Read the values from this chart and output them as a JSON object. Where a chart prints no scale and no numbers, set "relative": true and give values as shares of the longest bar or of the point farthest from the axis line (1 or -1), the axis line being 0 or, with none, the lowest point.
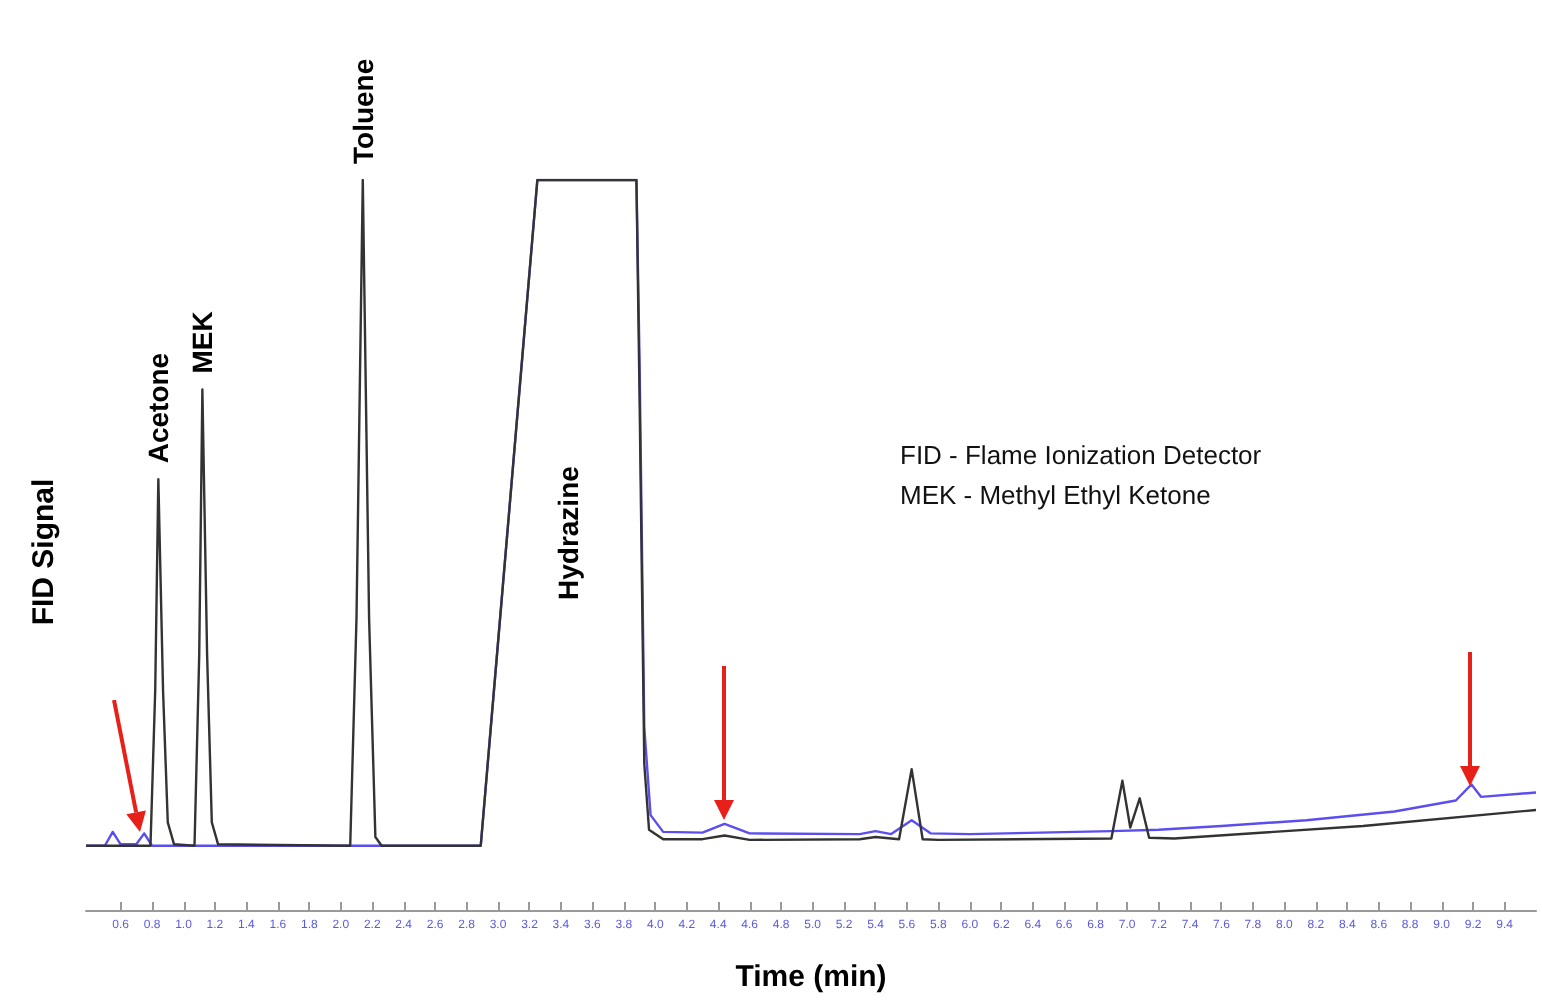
{
  "chart_data": {
    "type": "line",
    "relative": true,
    "xlabel": "Time (min)",
    "ylabel": "FID Signal",
    "xlim": [
      0.38,
      9.6
    ],
    "xticks": [
      {
        "value": 0.6,
        "label": "0.6"
      },
      {
        "value": 0.8,
        "label": "0.8"
      },
      {
        "value": 1.0,
        "label": "1.0"
      },
      {
        "value": 1.2,
        "label": "1.2"
      },
      {
        "value": 1.4,
        "label": "1.4"
      },
      {
        "value": 1.6,
        "label": "1.6"
      },
      {
        "value": 1.8,
        "label": "1.8"
      },
      {
        "value": 2.0,
        "label": "2.0"
      },
      {
        "value": 2.2,
        "label": "2.2"
      },
      {
        "value": 2.4,
        "label": "2.4"
      },
      {
        "value": 2.6,
        "label": "2.6"
      },
      {
        "value": 2.8,
        "label": "2.8"
      },
      {
        "value": 3.0,
        "label": "3.0"
      },
      {
        "value": 3.2,
        "label": "3.2"
      },
      {
        "value": 3.4,
        "label": "3.4"
      },
      {
        "value": 3.6,
        "label": "3.6"
      },
      {
        "value": 3.8,
        "label": "3.8"
      },
      {
        "value": 4.0,
        "label": "4.0"
      },
      {
        "value": 4.2,
        "label": "4.2"
      },
      {
        "value": 4.4,
        "label": "4.4"
      },
      {
        "value": 4.6,
        "label": "4.6"
      },
      {
        "value": 4.8,
        "label": "4.8"
      },
      {
        "value": 5.0,
        "label": "5.0"
      },
      {
        "value": 5.2,
        "label": "5.2"
      },
      {
        "value": 5.4,
        "label": "5.4"
      },
      {
        "value": 5.6,
        "label": "5.6"
      },
      {
        "value": 5.8,
        "label": "5.8"
      },
      {
        "value": 6.0,
        "label": "6.0"
      },
      {
        "value": 6.2,
        "label": "6.2"
      },
      {
        "value": 6.4,
        "label": "6.4"
      },
      {
        "value": 6.6,
        "label": "6.6"
      },
      {
        "value": 6.8,
        "label": "6.8"
      },
      {
        "value": 7.0,
        "label": "7.0"
      },
      {
        "value": 7.2,
        "label": "7.2"
      },
      {
        "value": 7.4,
        "label": "7.4"
      },
      {
        "value": 7.6,
        "label": "7.6"
      },
      {
        "value": 7.8,
        "label": "7.8"
      },
      {
        "value": 8.0,
        "label": "8.0"
      },
      {
        "value": 8.2,
        "label": "8.2"
      },
      {
        "value": 8.4,
        "label": "8.4"
      },
      {
        "value": 8.6,
        "label": "8.6"
      },
      {
        "value": 8.8,
        "label": "8.8"
      },
      {
        "value": 9.0,
        "label": "9.0"
      },
      {
        "value": 9.2,
        "label": "9.2"
      },
      {
        "value": 9.4,
        "label": "9.4"
      }
    ],
    "series": [
      {
        "color": "#5b4ef0",
        "x": [
          0.38,
          0.5,
          0.55,
          0.6,
          0.7,
          0.75,
          0.8,
          1.5,
          2.5,
          2.89,
          3.25,
          3.88,
          3.9,
          3.93,
          3.97,
          4.05,
          4.3,
          4.44,
          4.6,
          5.3,
          5.4,
          5.5,
          5.63,
          5.75,
          6.0,
          6.9,
          7.2,
          7.6,
          8.14,
          8.7,
          9.09,
          9.19,
          9.25,
          9.6
        ],
        "values": [
          0.088,
          0.088,
          0.107,
          0.09,
          0.09,
          0.105,
          0.088,
          0.088,
          0.088,
          0.088,
          1.0,
          1.0,
          0.75,
          0.25,
          0.13,
          0.107,
          0.106,
          0.118,
          0.105,
          0.104,
          0.108,
          0.104,
          0.123,
          0.105,
          0.104,
          0.108,
          0.11,
          0.115,
          0.123,
          0.135,
          0.15,
          0.172,
          0.155,
          0.161
        ]
      },
      {
        "color": "#333333",
        "x": [
          0.38,
          0.79,
          0.82,
          0.84,
          0.87,
          0.9,
          0.94,
          1.07,
          1.1,
          1.12,
          1.15,
          1.18,
          1.22,
          2.06,
          2.1,
          2.14,
          2.18,
          2.22,
          2.26,
          2.89,
          3.25,
          3.88,
          3.9,
          3.93,
          3.96,
          4.05,
          4.3,
          4.44,
          4.6,
          5.3,
          5.4,
          5.55,
          5.63,
          5.7,
          5.8,
          6.9,
          6.97,
          7.02,
          7.08,
          7.14,
          7.3,
          8.5,
          9.6
        ],
        "values": [
          0.088,
          0.088,
          0.3,
          0.59,
          0.3,
          0.12,
          0.09,
          0.088,
          0.35,
          0.713,
          0.35,
          0.12,
          0.09,
          0.088,
          0.4,
          1.0,
          0.4,
          0.1,
          0.088,
          0.088,
          1.0,
          1.0,
          0.7,
          0.2,
          0.11,
          0.097,
          0.097,
          0.102,
          0.096,
          0.097,
          0.1,
          0.097,
          0.193,
          0.097,
          0.096,
          0.098,
          0.177,
          0.113,
          0.153,
          0.099,
          0.098,
          0.115,
          0.137
        ]
      }
    ],
    "annotations": [
      {
        "text": "Acetone",
        "x": 0.84,
        "y": 0.59
      },
      {
        "text": "MEK",
        "x": 1.12,
        "y": 0.713
      },
      {
        "text": "Toluene",
        "x": 2.14,
        "y": 1.0
      },
      "Hydrazine",
      "FID - Flame Ionization Detector",
      "MEK - Methyl Ethyl Ketone"
    ]
  }
}
